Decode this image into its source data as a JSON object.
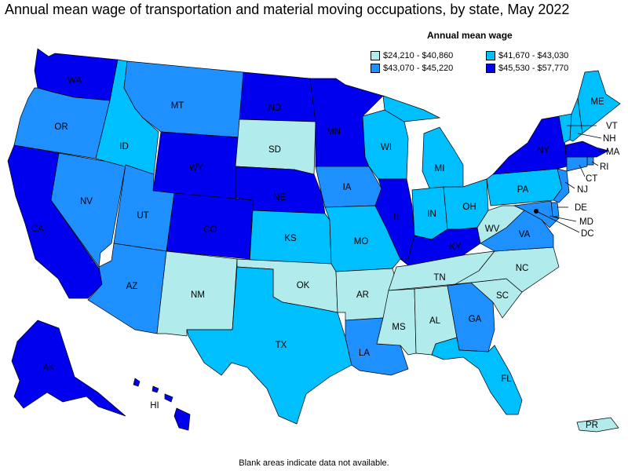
{
  "title": "Annual mean wage of transportation and material moving occupations, by state, May 2022",
  "legend": {
    "title": "Annual mean wage",
    "items": [
      {
        "label": "$24,210 - $40,860",
        "color": "#b2ebeb"
      },
      {
        "label": "$41,670 - $43,030",
        "color": "#00bfff"
      },
      {
        "label": "$43,070 - $45,220",
        "color": "#1e90ff"
      },
      {
        "label": "$45,530 - $57,770",
        "color": "#0000ee"
      }
    ]
  },
  "footnote": "Blank areas indicate data not available.",
  "states": [
    {
      "abbr": "WA",
      "tier": 3
    },
    {
      "abbr": "OR",
      "tier": 2
    },
    {
      "abbr": "CA",
      "tier": 3
    },
    {
      "abbr": "NV",
      "tier": 2
    },
    {
      "abbr": "ID",
      "tier": 1
    },
    {
      "abbr": "MT",
      "tier": 2
    },
    {
      "abbr": "WY",
      "tier": 3
    },
    {
      "abbr": "UT",
      "tier": 2
    },
    {
      "abbr": "AZ",
      "tier": 2
    },
    {
      "abbr": "CO",
      "tier": 3
    },
    {
      "abbr": "NM",
      "tier": 0
    },
    {
      "abbr": "ND",
      "tier": 3
    },
    {
      "abbr": "SD",
      "tier": 0
    },
    {
      "abbr": "NE",
      "tier": 3
    },
    {
      "abbr": "KS",
      "tier": 1
    },
    {
      "abbr": "OK",
      "tier": 0
    },
    {
      "abbr": "TX",
      "tier": 1
    },
    {
      "abbr": "MN",
      "tier": 3
    },
    {
      "abbr": "IA",
      "tier": 2
    },
    {
      "abbr": "MO",
      "tier": 1
    },
    {
      "abbr": "AR",
      "tier": 0
    },
    {
      "abbr": "LA",
      "tier": 2
    },
    {
      "abbr": "WI",
      "tier": 1
    },
    {
      "abbr": "IL",
      "tier": 3
    },
    {
      "abbr": "MI",
      "tier": 1
    },
    {
      "abbr": "IN",
      "tier": 1
    },
    {
      "abbr": "OH",
      "tier": 1
    },
    {
      "abbr": "KY",
      "tier": 3
    },
    {
      "abbr": "TN",
      "tier": 0
    },
    {
      "abbr": "MS",
      "tier": 0
    },
    {
      "abbr": "AL",
      "tier": 0
    },
    {
      "abbr": "GA",
      "tier": 2
    },
    {
      "abbr": "FL",
      "tier": 1
    },
    {
      "abbr": "SC",
      "tier": 0
    },
    {
      "abbr": "NC",
      "tier": 0
    },
    {
      "abbr": "VA",
      "tier": 2
    },
    {
      "abbr": "WV",
      "tier": 0
    },
    {
      "abbr": "PA",
      "tier": 1
    },
    {
      "abbr": "NY",
      "tier": 3
    },
    {
      "abbr": "VT",
      "tier": 1
    },
    {
      "abbr": "NH",
      "tier": 1
    },
    {
      "abbr": "ME",
      "tier": 1
    },
    {
      "abbr": "MA",
      "tier": 3
    },
    {
      "abbr": "RI",
      "tier": 2
    },
    {
      "abbr": "CT",
      "tier": 2
    },
    {
      "abbr": "NJ",
      "tier": 2
    },
    {
      "abbr": "DE",
      "tier": 2
    },
    {
      "abbr": "MD",
      "tier": 2
    },
    {
      "abbr": "DC",
      "tier": 3
    },
    {
      "abbr": "AK",
      "tier": 3
    },
    {
      "abbr": "HI",
      "tier": 3
    },
    {
      "abbr": "PR",
      "tier": 0
    }
  ]
}
